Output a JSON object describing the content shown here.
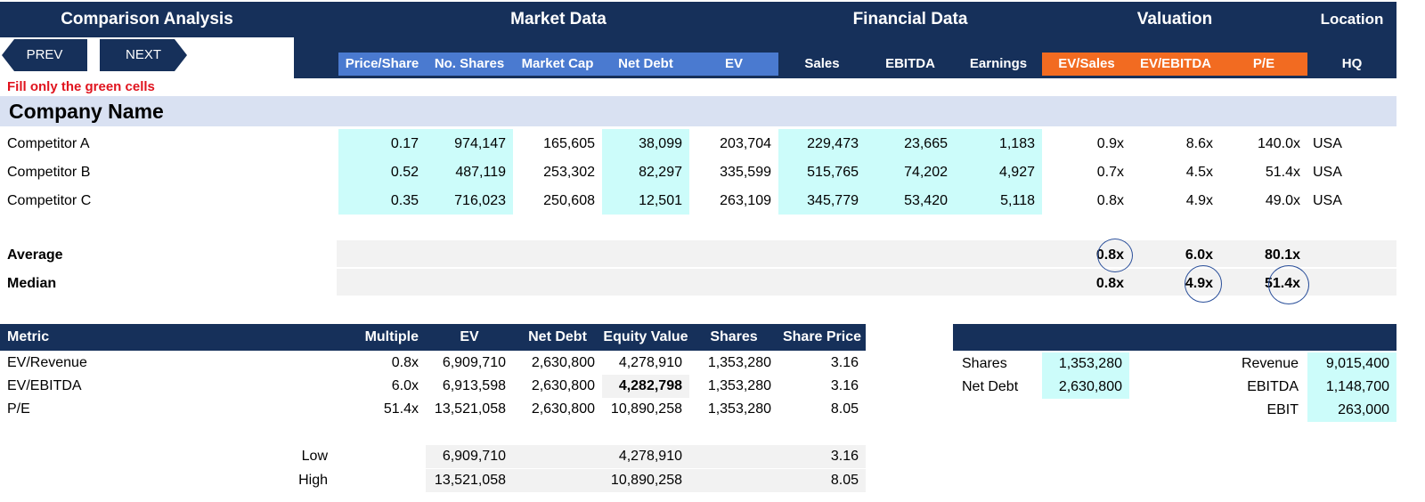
{
  "header": {
    "title": "Comparison Analysis",
    "groups": {
      "market": "Market Data",
      "financial": "Financial Data",
      "valuation": "Valuation",
      "location": "Location"
    }
  },
  "nav": {
    "prev": "PREV",
    "next": "NEXT"
  },
  "colors": {
    "navy": "#16305a",
    "blue": "#4a7ad0",
    "orange": "#f26b21",
    "input_cyan": "#ccfcfa",
    "instruction_red": "#e0141e",
    "company_band": "#d9e1f2"
  },
  "columns": [
    "Price/Share",
    "No. Shares",
    "Market Cap",
    "Net Debt",
    "EV",
    "Sales",
    "EBITDA",
    "Earnings",
    "EV/Sales",
    "EV/EBITDA",
    "P/E",
    "HQ"
  ],
  "instruction": "Fill only the green cells",
  "company_header": "Company Name",
  "competitors": [
    {
      "name": "Competitor A",
      "price": "0.17",
      "shares": "974,147",
      "mcap": "165,605",
      "debt": "38,099",
      "ev": "203,704",
      "sales": "229,473",
      "ebitda": "23,665",
      "earnings": "1,183",
      "ev_sales": "0.9x",
      "ev_ebitda": "8.6x",
      "pe": "140.0x",
      "hq": "USA"
    },
    {
      "name": "Competitor B",
      "price": "0.52",
      "shares": "487,119",
      "mcap": "253,302",
      "debt": "82,297",
      "ev": "335,599",
      "sales": "515,765",
      "ebitda": "74,202",
      "earnings": "4,927",
      "ev_sales": "0.7x",
      "ev_ebitda": "4.5x",
      "pe": "51.4x",
      "hq": "USA"
    },
    {
      "name": "Competitor C",
      "price": "0.35",
      "shares": "716,023",
      "mcap": "250,608",
      "debt": "12,501",
      "ev": "263,109",
      "sales": "345,779",
      "ebitda": "53,420",
      "earnings": "5,118",
      "ev_sales": "0.8x",
      "ev_ebitda": "4.9x",
      "pe": "49.0x",
      "hq": "USA"
    }
  ],
  "stats": {
    "average": {
      "label": "Average",
      "ev_sales": "0.8x",
      "ev_ebitda": "6.0x",
      "pe": "80.1x"
    },
    "median": {
      "label": "Median",
      "ev_sales": "0.8x",
      "ev_ebitda": "4.9x",
      "pe": "51.4x"
    }
  },
  "valuation_table": {
    "headers": {
      "metric": "Metric",
      "multiple": "Multiple",
      "ev": "EV",
      "debt": "Net Debt",
      "equity": "Equity Value",
      "shares": "Shares",
      "price": "Share Price"
    },
    "rows": [
      {
        "metric": "EV/Revenue",
        "multiple": "0.8x",
        "ev": "6,909,710",
        "debt": "2,630,800",
        "equity": "4,278,910",
        "shares": "1,353,280",
        "price": "3.16"
      },
      {
        "metric": "EV/EBITDA",
        "multiple": "6.0x",
        "ev": "6,913,598",
        "debt": "2,630,800",
        "equity": "4,282,798",
        "shares": "1,353,280",
        "price": "3.16"
      },
      {
        "metric": "P/E",
        "multiple": "51.4x",
        "ev": "13,521,058",
        "debt": "2,630,800",
        "equity": "10,890,258",
        "shares": "1,353,280",
        "price": "8.05"
      }
    ],
    "low": {
      "label": "Low",
      "ev": "6,909,710",
      "equity": "4,278,910",
      "price": "3.16"
    },
    "high": {
      "label": "High",
      "ev": "13,521,058",
      "equity": "10,890,258",
      "price": "8.05"
    }
  },
  "inputs": {
    "shares_label": "Shares",
    "shares": "1,353,280",
    "debt_label": "Net Debt",
    "debt": "2,630,800",
    "revenue_label": "Revenue",
    "revenue": "9,015,400",
    "ebitda_label": "EBITDA",
    "ebitda": "1,148,700",
    "ebit_label": "EBIT",
    "ebit": "263,000"
  }
}
